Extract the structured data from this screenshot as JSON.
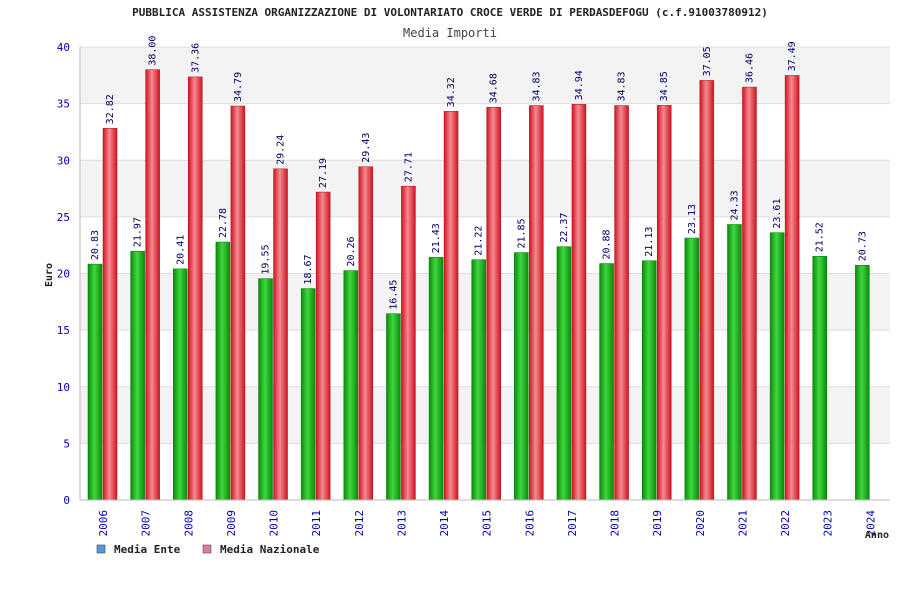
{
  "chart_data": {
    "type": "bar",
    "title": "PUBBLICA ASSISTENZA ORGANIZZAZIONE DI VOLONTARIATO CROCE VERDE DI PERDASDEFOGU (c.f.91003780912)",
    "subtitle": "Media Importi",
    "xlabel": "Anno",
    "ylabel": "Euro",
    "ylim": [
      0,
      40
    ],
    "yticks": [
      0,
      5,
      10,
      15,
      20,
      25,
      30,
      35,
      40
    ],
    "categories": [
      "2006",
      "2007",
      "2008",
      "2009",
      "2010",
      "2011",
      "2012",
      "2013",
      "2014",
      "2015",
      "2016",
      "2017",
      "2018",
      "2019",
      "2020",
      "2021",
      "2022",
      "2023",
      "2024"
    ],
    "series": [
      {
        "name": "Media Ente",
        "color": "#13b513",
        "legend_color": "#5599dd",
        "values": [
          20.83,
          21.97,
          20.41,
          22.78,
          19.55,
          18.67,
          20.26,
          16.45,
          21.43,
          21.22,
          21.85,
          22.37,
          20.88,
          21.13,
          23.13,
          24.33,
          23.61,
          21.52,
          20.73
        ],
        "labels": [
          "20.83",
          "21.97",
          "20.41",
          "22.78",
          "19.55",
          "18.67",
          "20.26",
          "16.45",
          "21.43",
          "21.22",
          "21.85",
          "22.37",
          "20.88",
          "21.13",
          "23.13",
          "24.33",
          "23.61",
          "21.52",
          "20.73"
        ]
      },
      {
        "name": "Media Nazionale",
        "color": "#e8303c",
        "legend_color": "#e07aa8",
        "values": [
          32.82,
          38.0,
          37.36,
          34.79,
          29.24,
          27.19,
          29.43,
          27.71,
          34.32,
          34.68,
          34.83,
          34.94,
          34.83,
          34.85,
          37.05,
          36.46,
          37.49,
          null,
          null
        ],
        "labels": [
          "32.82",
          "38.00",
          "37.36",
          "34.79",
          "29.24",
          "27.19",
          "29.43",
          "27.71",
          "34.32",
          "34.68",
          "34.83",
          "34.94",
          "34.83",
          "34.85",
          "37.05",
          "36.46",
          "37.49",
          "",
          ""
        ]
      }
    ],
    "grid": true,
    "legend": "bottom-left"
  }
}
